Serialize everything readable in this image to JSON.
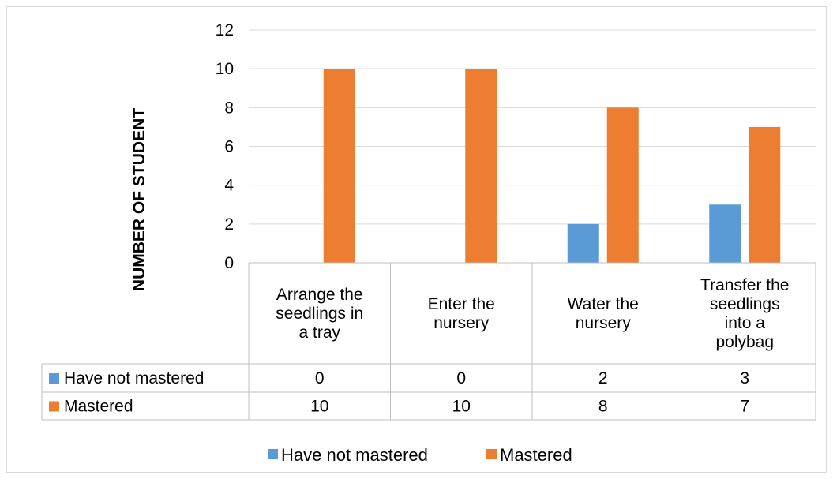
{
  "chart_data": {
    "type": "bar",
    "title": "",
    "xlabel": "",
    "ylabel": "NUMBER OF STUDENT",
    "ylim": [
      0,
      12
    ],
    "yticks": [
      0,
      2,
      4,
      6,
      8,
      10,
      12
    ],
    "grid": true,
    "legend_position": "bottom",
    "has_data_table": true,
    "categories": [
      [
        "Arrange the",
        "seedlings in",
        "a tray"
      ],
      [
        "Enter the",
        "nursery"
      ],
      [
        "Water the",
        "nursery"
      ],
      [
        "Transfer the",
        "seedlings",
        "into a",
        "polybag"
      ]
    ],
    "series": [
      {
        "name": "Have not mastered",
        "color": "#5b9bd5",
        "values": [
          0,
          0,
          2,
          3
        ]
      },
      {
        "name": "Mastered",
        "color": "#ed7d31",
        "values": [
          10,
          10,
          8,
          7
        ]
      }
    ]
  }
}
